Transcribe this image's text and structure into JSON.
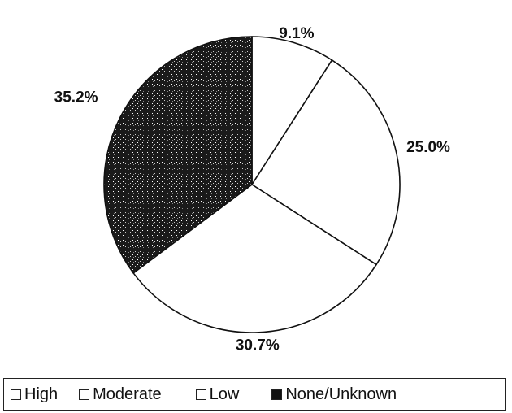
{
  "chart_data": {
    "type": "pie",
    "categories": [
      "High",
      "Moderate",
      "Low",
      "None/Unknown"
    ],
    "values": [
      9.1,
      25.0,
      30.7,
      35.2
    ],
    "labels": [
      "9.1%",
      "25.0%",
      "30.7%",
      "35.2%"
    ],
    "colors": [
      "#ffffff",
      "#ffffff",
      "#ffffff",
      "#111111"
    ],
    "legend_placement": "bottom",
    "title": ""
  },
  "legend": {
    "items": [
      {
        "label": "High",
        "swatch": "#ffffff"
      },
      {
        "label": "Moderate",
        "swatch": "#ffffff"
      },
      {
        "label": "Low",
        "swatch": "#ffffff"
      },
      {
        "label": "None/Unknown",
        "swatch": "#111111"
      }
    ]
  }
}
